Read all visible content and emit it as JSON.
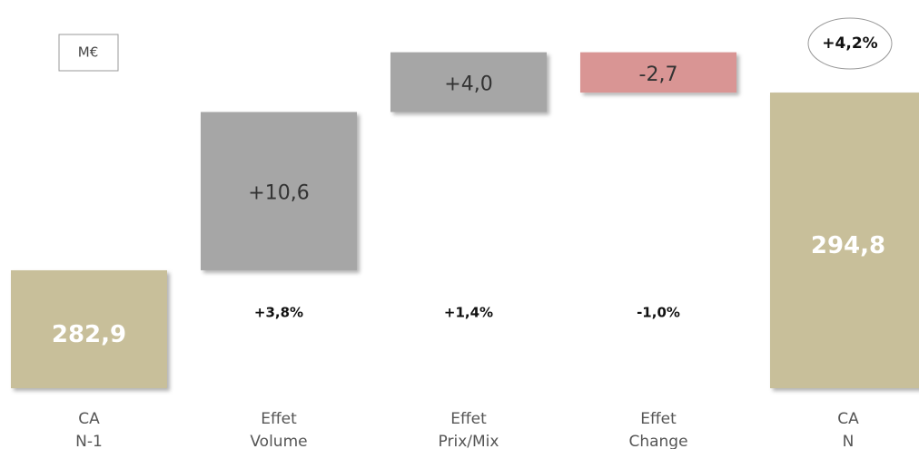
{
  "chart_data": {
    "type": "waterfall",
    "unit": "M€",
    "categories": [
      [
        "CA",
        "N-1"
      ],
      [
        "Effet",
        "Volume"
      ],
      [
        "Effet",
        "Prix/Mix"
      ],
      [
        "Effet",
        "Change"
      ],
      [
        "CA",
        "N"
      ]
    ],
    "measures": [
      "absolute",
      "relative",
      "relative",
      "relative",
      "total"
    ],
    "values": [
      282.9,
      10.6,
      4.0,
      -2.7,
      294.8
    ],
    "value_labels": [
      "282,9",
      "+10,6",
      "+4,0",
      "-2,7",
      "294,8"
    ],
    "colors": [
      "#c8bf9a",
      "#a6a6a6",
      "#a6a6a6",
      "#d99594",
      "#c8bf9a"
    ],
    "percent_labels": [
      null,
      "+3,8%",
      "+1,4%",
      "-1,0%",
      null
    ],
    "total_change": "+4,2%",
    "ylim": [
      275,
      301
    ]
  }
}
